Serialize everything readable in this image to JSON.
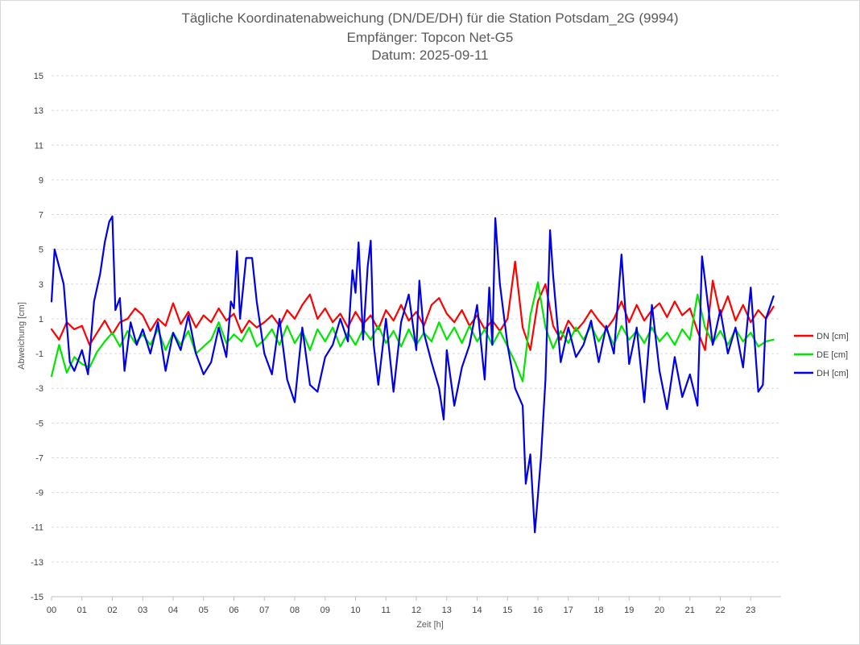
{
  "chart_data": {
    "type": "line",
    "title": "Tägliche Koordinatenabweichung (DN/DE/DH) für die Station Potsdam_2G (9994)",
    "subtitle_1": "Empfänger: Topcon Net-G5",
    "subtitle_2": "Datum: 2025-09-11",
    "xlabel": "Zeit [h]",
    "ylabel": "Abweichung [cm]",
    "xlim": [
      0,
      24
    ],
    "ylim": [
      -15,
      15
    ],
    "x_tick_labels": [
      "00",
      "01",
      "02",
      "03",
      "04",
      "05",
      "06",
      "07",
      "08",
      "09",
      "10",
      "11",
      "12",
      "13",
      "14",
      "15",
      "16",
      "17",
      "18",
      "19",
      "20",
      "21",
      "22",
      "23"
    ],
    "y_tick_labels": [
      "-15",
      "-13",
      "-11",
      "-9",
      "-7",
      "-5",
      "-3",
      "-1",
      "1",
      "3",
      "5",
      "7",
      "9",
      "11",
      "13",
      "15"
    ],
    "y_tick_values": [
      -15,
      -13,
      -11,
      -9,
      -7,
      -5,
      -3,
      -1,
      1,
      3,
      5,
      7,
      9,
      11,
      13,
      15
    ],
    "grid": true,
    "legend_position": "right",
    "series": [
      {
        "name": "DN [cm]",
        "color": "#ff0000",
        "points": [
          [
            0,
            0.4
          ],
          [
            0.25,
            -0.2
          ],
          [
            0.5,
            0.8
          ],
          [
            0.75,
            0.4
          ],
          [
            1,
            0.6
          ],
          [
            1.25,
            -0.5
          ],
          [
            1.5,
            0.2
          ],
          [
            1.75,
            0.9
          ],
          [
            2,
            0.1
          ],
          [
            2.25,
            0.8
          ],
          [
            2.5,
            1.0
          ],
          [
            2.75,
            1.6
          ],
          [
            3,
            1.2
          ],
          [
            3.25,
            0.3
          ],
          [
            3.5,
            1.0
          ],
          [
            3.75,
            0.6
          ],
          [
            4,
            1.9
          ],
          [
            4.25,
            0.7
          ],
          [
            4.5,
            1.4
          ],
          [
            4.75,
            0.5
          ],
          [
            5,
            1.2
          ],
          [
            5.25,
            0.8
          ],
          [
            5.5,
            1.6
          ],
          [
            5.75,
            0.9
          ],
          [
            6,
            1.3
          ],
          [
            6.25,
            0.2
          ],
          [
            6.5,
            0.9
          ],
          [
            6.75,
            0.5
          ],
          [
            7,
            0.8
          ],
          [
            7.25,
            1.2
          ],
          [
            7.5,
            0.6
          ],
          [
            7.75,
            1.5
          ],
          [
            8,
            1.0
          ],
          [
            8.25,
            1.8
          ],
          [
            8.5,
            2.4
          ],
          [
            8.75,
            1.0
          ],
          [
            9,
            1.6
          ],
          [
            9.25,
            0.8
          ],
          [
            9.5,
            1.3
          ],
          [
            9.75,
            0.5
          ],
          [
            10,
            1.4
          ],
          [
            10.25,
            0.7
          ],
          [
            10.5,
            1.2
          ],
          [
            10.75,
            0.4
          ],
          [
            11,
            1.5
          ],
          [
            11.25,
            0.9
          ],
          [
            11.5,
            1.8
          ],
          [
            11.75,
            0.9
          ],
          [
            12,
            1.4
          ],
          [
            12.25,
            0.6
          ],
          [
            12.5,
            1.8
          ],
          [
            12.75,
            2.2
          ],
          [
            13,
            1.3
          ],
          [
            13.25,
            0.8
          ],
          [
            13.5,
            1.5
          ],
          [
            13.75,
            0.6
          ],
          [
            14,
            1.2
          ],
          [
            14.25,
            0.4
          ],
          [
            14.5,
            0.9
          ],
          [
            14.75,
            0.3
          ],
          [
            15,
            1.0
          ],
          [
            15.25,
            4.3
          ],
          [
            15.5,
            0.5
          ],
          [
            15.75,
            -0.8
          ],
          [
            16,
            2.0
          ],
          [
            16.25,
            3.0
          ],
          [
            16.5,
            0.6
          ],
          [
            16.75,
            -0.2
          ],
          [
            17,
            0.9
          ],
          [
            17.25,
            0.3
          ],
          [
            17.5,
            0.8
          ],
          [
            17.75,
            1.5
          ],
          [
            18,
            0.9
          ],
          [
            18.25,
            0.4
          ],
          [
            18.5,
            1.0
          ],
          [
            18.75,
            2.0
          ],
          [
            19,
            0.8
          ],
          [
            19.25,
            1.8
          ],
          [
            19.5,
            0.9
          ],
          [
            19.75,
            1.5
          ],
          [
            20,
            1.9
          ],
          [
            20.25,
            1.1
          ],
          [
            20.5,
            2.0
          ],
          [
            20.75,
            1.2
          ],
          [
            21,
            1.6
          ],
          [
            21.25,
            0.3
          ],
          [
            21.5,
            -0.8
          ],
          [
            21.75,
            3.2
          ],
          [
            22,
            1.2
          ],
          [
            22.25,
            2.3
          ],
          [
            22.5,
            0.9
          ],
          [
            22.75,
            1.8
          ],
          [
            23,
            0.8
          ],
          [
            23.25,
            1.5
          ],
          [
            23.5,
            1.0
          ],
          [
            23.75,
            1.7
          ]
        ]
      },
      {
        "name": "DE [cm]",
        "color": "#00e600",
        "points": [
          [
            0,
            -2.3
          ],
          [
            0.25,
            -0.5
          ],
          [
            0.5,
            -2.1
          ],
          [
            0.75,
            -1.2
          ],
          [
            1,
            -1.6
          ],
          [
            1.25,
            -1.8
          ],
          [
            1.5,
            -0.9
          ],
          [
            1.75,
            -0.3
          ],
          [
            2,
            0.2
          ],
          [
            2.25,
            -0.6
          ],
          [
            2.5,
            0.3
          ],
          [
            2.75,
            -0.4
          ],
          [
            3,
            0.1
          ],
          [
            3.25,
            -0.5
          ],
          [
            3.5,
            0.4
          ],
          [
            3.75,
            -0.8
          ],
          [
            4,
            0.2
          ],
          [
            4.25,
            -0.5
          ],
          [
            4.5,
            0.3
          ],
          [
            4.75,
            -1.0
          ],
          [
            5,
            -0.6
          ],
          [
            5.25,
            -0.2
          ],
          [
            5.5,
            0.8
          ],
          [
            5.75,
            -0.4
          ],
          [
            6,
            0.1
          ],
          [
            6.25,
            -0.3
          ],
          [
            6.5,
            0.5
          ],
          [
            6.75,
            -0.6
          ],
          [
            7,
            -0.2
          ],
          [
            7.25,
            0.4
          ],
          [
            7.5,
            -0.5
          ],
          [
            7.75,
            0.6
          ],
          [
            8,
            -0.4
          ],
          [
            8.25,
            0.3
          ],
          [
            8.5,
            -0.8
          ],
          [
            8.75,
            0.4
          ],
          [
            9,
            -0.3
          ],
          [
            9.25,
            0.5
          ],
          [
            9.5,
            -0.6
          ],
          [
            9.75,
            0.2
          ],
          [
            10,
            -0.5
          ],
          [
            10.25,
            0.4
          ],
          [
            10.5,
            -0.2
          ],
          [
            10.75,
            0.6
          ],
          [
            11,
            -0.4
          ],
          [
            11.25,
            0.3
          ],
          [
            11.5,
            -0.6
          ],
          [
            11.75,
            0.4
          ],
          [
            12,
            -0.5
          ],
          [
            12.25,
            0.2
          ],
          [
            12.5,
            -0.3
          ],
          [
            12.75,
            0.8
          ],
          [
            13,
            -0.2
          ],
          [
            13.25,
            0.5
          ],
          [
            13.5,
            -0.4
          ],
          [
            13.75,
            0.6
          ],
          [
            14,
            -0.3
          ],
          [
            14.25,
            0.4
          ],
          [
            14.5,
            -0.5
          ],
          [
            14.75,
            0.3
          ],
          [
            15,
            -0.6
          ],
          [
            15.25,
            -1.5
          ],
          [
            15.5,
            -2.6
          ],
          [
            15.75,
            1.2
          ],
          [
            16,
            3.1
          ],
          [
            16.25,
            0.5
          ],
          [
            16.5,
            -0.7
          ],
          [
            16.75,
            0.3
          ],
          [
            17,
            -0.4
          ],
          [
            17.25,
            0.5
          ],
          [
            17.5,
            -0.2
          ],
          [
            17.75,
            0.6
          ],
          [
            18,
            -0.3
          ],
          [
            18.25,
            0.4
          ],
          [
            18.5,
            -0.5
          ],
          [
            18.75,
            0.6
          ],
          [
            19,
            -0.2
          ],
          [
            19.25,
            0.3
          ],
          [
            19.5,
            -0.4
          ],
          [
            19.75,
            0.5
          ],
          [
            20,
            -0.3
          ],
          [
            20.25,
            0.2
          ],
          [
            20.5,
            -0.5
          ],
          [
            20.75,
            0.4
          ],
          [
            21,
            -0.2
          ],
          [
            21.25,
            2.4
          ],
          [
            21.5,
            0.5
          ],
          [
            21.75,
            -0.4
          ],
          [
            22,
            0.3
          ],
          [
            22.25,
            -0.5
          ],
          [
            22.5,
            0.4
          ],
          [
            22.75,
            -0.3
          ],
          [
            23,
            0.2
          ],
          [
            23.25,
            -0.6
          ],
          [
            23.5,
            -0.3
          ],
          [
            23.75,
            -0.2
          ]
        ]
      },
      {
        "name": "DH [cm]",
        "color": "#0000e6",
        "points": [
          [
            0,
            2.0
          ],
          [
            0.1,
            5.0
          ],
          [
            0.25,
            4.0
          ],
          [
            0.4,
            3.0
          ],
          [
            0.6,
            -1.5
          ],
          [
            0.75,
            -2.0
          ],
          [
            1,
            -0.8
          ],
          [
            1.2,
            -2.2
          ],
          [
            1.4,
            2.0
          ],
          [
            1.6,
            3.6
          ],
          [
            1.75,
            5.4
          ],
          [
            1.9,
            6.6
          ],
          [
            2,
            6.9
          ],
          [
            2.1,
            1.5
          ],
          [
            2.25,
            2.2
          ],
          [
            2.4,
            -2.0
          ],
          [
            2.6,
            0.8
          ],
          [
            2.8,
            -0.5
          ],
          [
            3,
            0.4
          ],
          [
            3.25,
            -1.0
          ],
          [
            3.5,
            0.8
          ],
          [
            3.75,
            -2.0
          ],
          [
            4,
            0.2
          ],
          [
            4.25,
            -0.8
          ],
          [
            4.5,
            1.2
          ],
          [
            4.75,
            -1.0
          ],
          [
            5,
            -2.2
          ],
          [
            5.25,
            -1.5
          ],
          [
            5.5,
            0.5
          ],
          [
            5.75,
            -1.2
          ],
          [
            5.9,
            2.0
          ],
          [
            6,
            1.6
          ],
          [
            6.1,
            4.9
          ],
          [
            6.2,
            1.0
          ],
          [
            6.4,
            4.5
          ],
          [
            6.6,
            4.5
          ],
          [
            6.75,
            2.0
          ],
          [
            7,
            -1.0
          ],
          [
            7.25,
            -2.2
          ],
          [
            7.5,
            1.0
          ],
          [
            7.75,
            -2.5
          ],
          [
            8,
            -3.8
          ],
          [
            8.25,
            0.5
          ],
          [
            8.5,
            -2.8
          ],
          [
            8.75,
            -3.2
          ],
          [
            9,
            -1.2
          ],
          [
            9.25,
            -0.5
          ],
          [
            9.5,
            1.0
          ],
          [
            9.75,
            -0.3
          ],
          [
            9.9,
            3.8
          ],
          [
            10,
            2.5
          ],
          [
            10.1,
            5.4
          ],
          [
            10.25,
            -0.2
          ],
          [
            10.4,
            4.0
          ],
          [
            10.5,
            5.5
          ],
          [
            10.6,
            -0.5
          ],
          [
            10.75,
            -2.8
          ],
          [
            11,
            1.0
          ],
          [
            11.25,
            -3.2
          ],
          [
            11.5,
            0.8
          ],
          [
            11.75,
            2.4
          ],
          [
            12,
            -0.8
          ],
          [
            12.1,
            3.2
          ],
          [
            12.25,
            0.2
          ],
          [
            12.5,
            -1.5
          ],
          [
            12.75,
            -3.0
          ],
          [
            12.9,
            -4.8
          ],
          [
            13,
            -0.8
          ],
          [
            13.25,
            -4.0
          ],
          [
            13.5,
            -1.8
          ],
          [
            13.75,
            -0.5
          ],
          [
            14,
            1.8
          ],
          [
            14.25,
            -2.5
          ],
          [
            14.4,
            2.8
          ],
          [
            14.5,
            -0.5
          ],
          [
            14.6,
            6.8
          ],
          [
            14.75,
            3.0
          ],
          [
            15,
            -0.5
          ],
          [
            15.25,
            -3.0
          ],
          [
            15.5,
            -4.0
          ],
          [
            15.6,
            -8.5
          ],
          [
            15.75,
            -6.8
          ],
          [
            15.9,
            -11.3
          ],
          [
            16,
            -9.2
          ],
          [
            16.1,
            -7.0
          ],
          [
            16.25,
            -2.5
          ],
          [
            16.4,
            6.1
          ],
          [
            16.5,
            3.5
          ],
          [
            16.75,
            -1.5
          ],
          [
            17,
            0.5
          ],
          [
            17.25,
            -1.2
          ],
          [
            17.5,
            -0.5
          ],
          [
            17.75,
            0.9
          ],
          [
            18,
            -1.5
          ],
          [
            18.25,
            0.6
          ],
          [
            18.5,
            -1.0
          ],
          [
            18.75,
            4.7
          ],
          [
            19,
            -1.6
          ],
          [
            19.25,
            0.5
          ],
          [
            19.5,
            -3.8
          ],
          [
            19.75,
            1.8
          ],
          [
            20,
            -2.0
          ],
          [
            20.25,
            -4.2
          ],
          [
            20.5,
            -1.2
          ],
          [
            20.75,
            -3.5
          ],
          [
            21,
            -2.2
          ],
          [
            21.25,
            -4.0
          ],
          [
            21.4,
            4.6
          ],
          [
            21.5,
            3.2
          ],
          [
            21.75,
            -0.5
          ],
          [
            22,
            1.5
          ],
          [
            22.25,
            -1.0
          ],
          [
            22.5,
            0.5
          ],
          [
            22.75,
            -1.8
          ],
          [
            23,
            2.8
          ],
          [
            23.25,
            -3.2
          ],
          [
            23.4,
            -2.8
          ],
          [
            23.5,
            1.0
          ],
          [
            23.75,
            2.3
          ]
        ]
      }
    ]
  }
}
